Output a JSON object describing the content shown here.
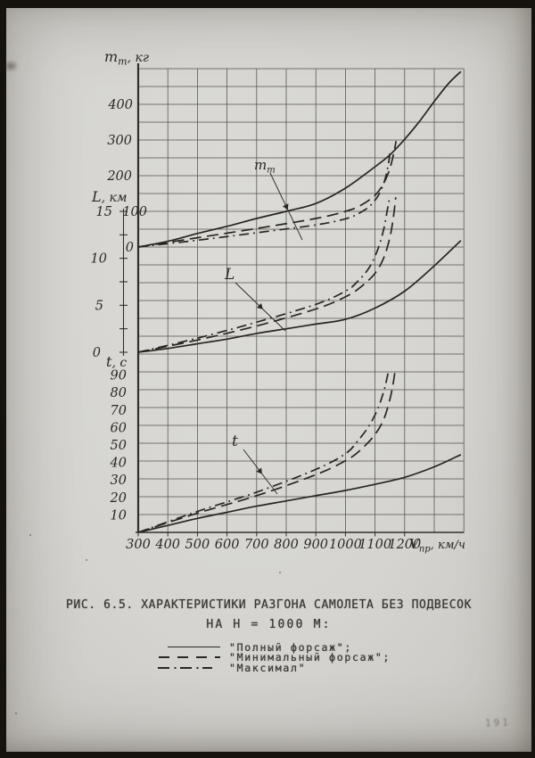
{
  "photo": {
    "page_number": "191"
  },
  "caption": {
    "line1": "РИС. 6.5. ХАРАКТЕРИСТИКИ РАЗГОНА САМОЛЕТА БЕЗ ПОДВЕСОК",
    "line2": "НА Н = 1000 М:"
  },
  "legend": {
    "items": [
      {
        "style": "solid",
        "label": "\"Полный форсаж\";"
      },
      {
        "style": "dashed",
        "label": "\"Минимальный форсаж\";"
      },
      {
        "style": "dashdot",
        "label": "\"Максимал\""
      }
    ]
  },
  "chart_data": {
    "type": "line",
    "grid": true,
    "x_axis": {
      "label_base": "V",
      "label_sub": "пр",
      "label_unit": ", км/ч",
      "ticks": [
        300,
        400,
        500,
        600,
        700,
        800,
        900,
        1000,
        1100,
        1200
      ],
      "range": [
        300,
        1400
      ]
    },
    "panels": [
      {
        "id": "fuel",
        "axis_base": "m",
        "axis_sub": "т",
        "axis_unit": ", кг",
        "curve_label_base": "m",
        "curve_label_sub": "т",
        "ticks": [
          0,
          100,
          200,
          300,
          400
        ],
        "range": [
          0,
          500
        ],
        "series": [
          {
            "name": "Полный форсаж",
            "style": "solid",
            "points": [
              [
                300,
                0
              ],
              [
                400,
                16
              ],
              [
                500,
                38
              ],
              [
                600,
                58
              ],
              [
                700,
                80
              ],
              [
                800,
                100
              ],
              [
                900,
                122
              ],
              [
                1000,
                165
              ],
              [
                1100,
                225
              ],
              [
                1150,
                258
              ],
              [
                1200,
                302
              ],
              [
                1250,
                352
              ],
              [
                1300,
                408
              ],
              [
                1350,
                460
              ],
              [
                1390,
                492
              ]
            ]
          },
          {
            "name": "Минимальный форсаж",
            "style": "dashed",
            "points": [
              [
                300,
                0
              ],
              [
                500,
                26
              ],
              [
                700,
                52
              ],
              [
                900,
                80
              ],
              [
                1000,
                100
              ],
              [
                1050,
                116
              ],
              [
                1100,
                145
              ],
              [
                1130,
                180
              ],
              [
                1150,
                220
              ],
              [
                1163,
                262
              ],
              [
                1171,
                297
              ]
            ]
          },
          {
            "name": "Максимал",
            "style": "dashdot",
            "points": [
              [
                300,
                0
              ],
              [
                500,
                19
              ],
              [
                700,
                40
              ],
              [
                900,
                62
              ],
              [
                1000,
                79
              ],
              [
                1040,
                92
              ],
              [
                1080,
                113
              ],
              [
                1110,
                143
              ],
              [
                1132,
                185
              ],
              [
                1145,
                232
              ],
              [
                1151,
                268
              ]
            ]
          }
        ]
      },
      {
        "id": "distance",
        "axis_base": "L",
        "axis_sub": "",
        "axis_unit": ", км",
        "curve_label_base": "L",
        "curve_label_sub": "",
        "ticks": [
          0,
          5,
          10,
          15
        ],
        "range": [
          0,
          17.5
        ],
        "series": [
          {
            "name": "Полный форсаж",
            "style": "solid",
            "points": [
              [
                300,
                0
              ],
              [
                400,
                0.4
              ],
              [
                500,
                0.9
              ],
              [
                600,
                1.4
              ],
              [
                700,
                2.0
              ],
              [
                800,
                2.5
              ],
              [
                900,
                3.0
              ],
              [
                1000,
                3.5
              ],
              [
                1100,
                4.7
              ],
              [
                1200,
                6.5
              ],
              [
                1300,
                9.2
              ],
              [
                1390,
                11.9
              ]
            ]
          },
          {
            "name": "Минимальный форсаж",
            "style": "dashed",
            "points": [
              [
                300,
                0
              ],
              [
                500,
                1.3
              ],
              [
                700,
                2.8
              ],
              [
                900,
                4.6
              ],
              [
                1000,
                5.9
              ],
              [
                1050,
                6.9
              ],
              [
                1100,
                8.4
              ],
              [
                1130,
                10.1
              ],
              [
                1150,
                12.2
              ],
              [
                1162,
                14.4
              ],
              [
                1170,
                16.5
              ]
            ]
          },
          {
            "name": "Максимал",
            "style": "dashdot",
            "points": [
              [
                300,
                0
              ],
              [
                500,
                1.5
              ],
              [
                700,
                3.2
              ],
              [
                900,
                5.1
              ],
              [
                1000,
                6.5
              ],
              [
                1040,
                7.5
              ],
              [
                1080,
                9.0
              ],
              [
                1110,
                11.0
              ],
              [
                1130,
                13.2
              ],
              [
                1142,
                15.2
              ],
              [
                1148,
                16.2
              ]
            ]
          }
        ]
      },
      {
        "id": "time",
        "axis_base": "t",
        "axis_sub": "",
        "axis_unit": ", c",
        "curve_label_base": "t",
        "curve_label_sub": "",
        "ticks": [
          10,
          20,
          30,
          40,
          50,
          60,
          70,
          80,
          90
        ],
        "range": [
          0,
          100
        ],
        "series": [
          {
            "name": "Полный форсаж",
            "style": "solid",
            "points": [
              [
                300,
                0
              ],
              [
                400,
                4
              ],
              [
                500,
                8
              ],
              [
                600,
                11.5
              ],
              [
                700,
                15
              ],
              [
                800,
                18
              ],
              [
                900,
                21
              ],
              [
                1000,
                24
              ],
              [
                1100,
                27.5
              ],
              [
                1200,
                31.5
              ],
              [
                1300,
                37.5
              ],
              [
                1390,
                44.5
              ]
            ]
          },
          {
            "name": "Минимальный форсаж",
            "style": "dashed",
            "points": [
              [
                300,
                0
              ],
              [
                500,
                11
              ],
              [
                700,
                21
              ],
              [
                900,
                33
              ],
              [
                1000,
                41
              ],
              [
                1050,
                47
              ],
              [
                1100,
                56
              ],
              [
                1130,
                65
              ],
              [
                1150,
                76
              ],
              [
                1160,
                84
              ],
              [
                1167,
                91.5
              ]
            ]
          },
          {
            "name": "Максимал",
            "style": "dashdot",
            "points": [
              [
                300,
                0
              ],
              [
                500,
                12
              ],
              [
                700,
                23
              ],
              [
                900,
                36
              ],
              [
                1000,
                45
              ],
              [
                1040,
                52
              ],
              [
                1080,
                61
              ],
              [
                1110,
                71
              ],
              [
                1130,
                81
              ],
              [
                1140,
                88
              ],
              [
                1145,
                92
              ]
            ]
          }
        ]
      }
    ]
  }
}
